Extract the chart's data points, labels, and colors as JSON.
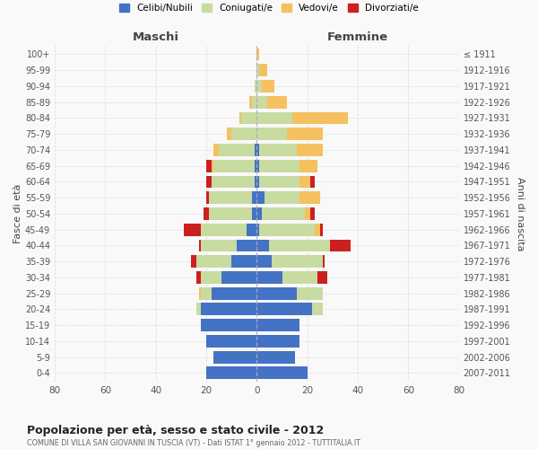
{
  "age_groups": [
    "0-4",
    "5-9",
    "10-14",
    "15-19",
    "20-24",
    "25-29",
    "30-34",
    "35-39",
    "40-44",
    "45-49",
    "50-54",
    "55-59",
    "60-64",
    "65-69",
    "70-74",
    "75-79",
    "80-84",
    "85-89",
    "90-94",
    "95-99",
    "100+"
  ],
  "birth_years": [
    "2007-2011",
    "2002-2006",
    "1997-2001",
    "1992-1996",
    "1987-1991",
    "1982-1986",
    "1977-1981",
    "1972-1976",
    "1967-1971",
    "1962-1966",
    "1957-1961",
    "1952-1956",
    "1947-1951",
    "1942-1946",
    "1937-1941",
    "1932-1936",
    "1927-1931",
    "1922-1926",
    "1917-1921",
    "1912-1916",
    "≤ 1911"
  ],
  "male": {
    "celibe": [
      20,
      17,
      20,
      22,
      22,
      18,
      14,
      10,
      8,
      4,
      2,
      2,
      1,
      1,
      1,
      0,
      0,
      0,
      0,
      0,
      0
    ],
    "coniugato": [
      0,
      0,
      0,
      0,
      2,
      4,
      8,
      14,
      14,
      18,
      17,
      17,
      17,
      16,
      14,
      10,
      6,
      2,
      1,
      0,
      0
    ],
    "vedovo": [
      0,
      0,
      0,
      0,
      0,
      1,
      0,
      0,
      0,
      0,
      0,
      0,
      0,
      1,
      2,
      2,
      1,
      1,
      0,
      0,
      0
    ],
    "divorziato": [
      0,
      0,
      0,
      0,
      0,
      0,
      2,
      2,
      1,
      7,
      2,
      1,
      2,
      2,
      0,
      0,
      0,
      0,
      0,
      0,
      0
    ]
  },
  "female": {
    "nubile": [
      20,
      15,
      17,
      17,
      22,
      16,
      10,
      6,
      5,
      1,
      2,
      3,
      1,
      1,
      1,
      0,
      0,
      0,
      0,
      0,
      0
    ],
    "coniugata": [
      0,
      0,
      0,
      0,
      4,
      10,
      14,
      20,
      24,
      22,
      17,
      14,
      16,
      16,
      15,
      12,
      14,
      4,
      2,
      1,
      0
    ],
    "vedova": [
      0,
      0,
      0,
      0,
      0,
      0,
      0,
      0,
      0,
      2,
      2,
      8,
      4,
      7,
      10,
      14,
      22,
      8,
      5,
      3,
      1
    ],
    "divorziata": [
      0,
      0,
      0,
      0,
      0,
      0,
      4,
      1,
      8,
      1,
      2,
      0,
      2,
      0,
      0,
      0,
      0,
      0,
      0,
      0,
      0
    ]
  },
  "colors": {
    "celibe": "#4472C4",
    "coniugato": "#c8dba0",
    "vedovo": "#f5c060",
    "divorziato": "#cc2020"
  },
  "xlim": 80,
  "title": "Popolazione per età, sesso e stato civile - 2012",
  "subtitle": "COMUNE DI VILLA SAN GIOVANNI IN TUSCIA (VT) - Dati ISTAT 1° gennaio 2012 - TUTTITALIA.IT",
  "ylabel": "Fasce di età",
  "ylabel_right": "Anni di nascita",
  "legend_labels": [
    "Celibi/Nubili",
    "Coniugati/e",
    "Vedovi/e",
    "Divorziati/e"
  ],
  "maschi_label": "Maschi",
  "femmine_label": "Femmine",
  "bg_color": "#f9f9f9",
  "grid_color": "#dddddd"
}
